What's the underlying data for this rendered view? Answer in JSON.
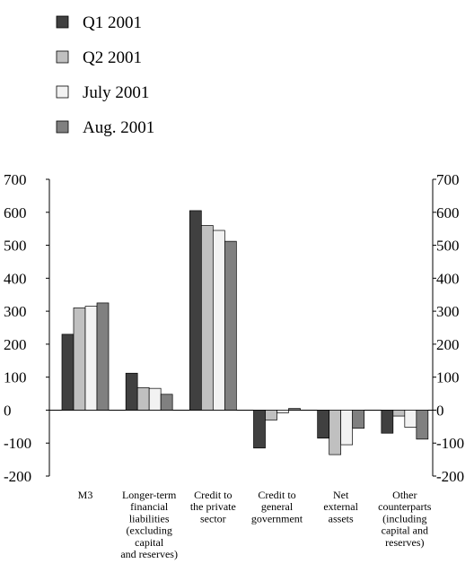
{
  "chart_data": {
    "type": "bar",
    "title": "",
    "xlabel": "",
    "ylabel": "",
    "ylim": [
      -200,
      700
    ],
    "yticks": [
      -200,
      -100,
      0,
      100,
      200,
      300,
      400,
      500,
      600,
      700
    ],
    "grid": false,
    "legend_position": "top-left",
    "categories": [
      [
        "M3"
      ],
      [
        "Longer-term",
        "financial",
        "liabilities",
        "(excluding",
        "capital",
        "and reserves)"
      ],
      [
        "Credit to",
        "the private",
        "sector"
      ],
      [
        "Credit to",
        "general",
        "government"
      ],
      [
        "Net",
        "external",
        "assets"
      ],
      [
        "Other",
        "counterparts",
        "(including",
        "capital and",
        "reserves)"
      ]
    ],
    "series": [
      {
        "name": "Q1 2001",
        "color": "#404040",
        "values": [
          230,
          112,
          605,
          -115,
          -85,
          -70
        ]
      },
      {
        "name": "Q2 2001",
        "color": "#c0c0c0",
        "values": [
          310,
          68,
          560,
          -30,
          -135,
          -18
        ]
      },
      {
        "name": "July 2001",
        "color": "#f2f2f2",
        "values": [
          315,
          66,
          545,
          -8,
          -105,
          -52
        ]
      },
      {
        "name": "Aug. 2001",
        "color": "#808080",
        "values": [
          325,
          48,
          512,
          5,
          -55,
          -88
        ]
      }
    ]
  }
}
